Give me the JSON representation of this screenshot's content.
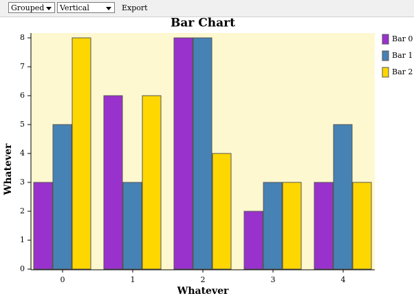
{
  "toolbar": {
    "mode": "Grouped",
    "orientation": "Vertical",
    "export": "Export"
  },
  "chart_data": {
    "type": "bar",
    "title": "Bar Chart",
    "x_label": "Whatever",
    "y_label": "Whatever",
    "categories": [
      "0",
      "1",
      "2",
      "3",
      "4"
    ],
    "series": [
      {
        "name": "Bar 0",
        "color": "#9932cc",
        "values": [
          3,
          6,
          8,
          2,
          3
        ]
      },
      {
        "name": "Bar 1",
        "color": "#4682b4",
        "values": [
          5,
          3,
          8,
          3,
          5
        ]
      },
      {
        "name": "Bar 2",
        "color": "#ffd700",
        "values": [
          8,
          6,
          4,
          3,
          3
        ]
      }
    ],
    "ylim": [
      0,
      8
    ],
    "yticks": [
      0,
      1,
      2,
      3,
      4,
      5,
      6,
      7,
      8
    ],
    "grid": false,
    "legend": "right"
  }
}
